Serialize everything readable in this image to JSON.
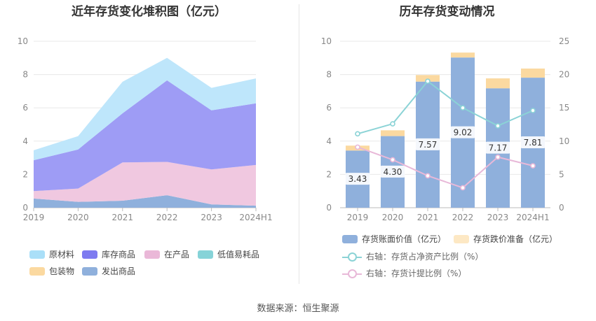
{
  "source": "数据来源：恒生聚源",
  "chart_data": [
    {
      "type": "area",
      "stacked": true,
      "title": "近年存货变化堆积图（亿元）",
      "categories": [
        "2019",
        "2020",
        "2021",
        "2022",
        "2023",
        "2024H1"
      ],
      "ylim": [
        0,
        10
      ],
      "yticks": [
        "0",
        "2",
        "4",
        "6",
        "8",
        "10"
      ],
      "grid": true,
      "legend_position": "bottom",
      "series": [
        {
          "name": "发出商品",
          "color": "#8fb0dc",
          "values": [
            0.55,
            0.35,
            0.42,
            0.75,
            0.2,
            0.12
          ]
        },
        {
          "name": "低值易耗品",
          "color": "#86d3d8",
          "values": [
            0.0,
            0.0,
            0.0,
            0.0,
            0.0,
            0.0
          ]
        },
        {
          "name": "在产品",
          "color": "#f0c8e0",
          "values": [
            0.45,
            0.8,
            2.3,
            2.0,
            2.1,
            2.45
          ]
        },
        {
          "name": "包装物",
          "color": "#fbd9a0",
          "values": [
            0.0,
            0.0,
            0.0,
            0.0,
            0.0,
            0.0
          ]
        },
        {
          "name": "库存商品",
          "color": "#9e9cf5",
          "values": [
            1.85,
            2.35,
            2.95,
            4.9,
            3.55,
            3.7
          ]
        },
        {
          "name": "原材料",
          "color": "#bee6fb",
          "values": [
            0.6,
            0.8,
            1.9,
            1.35,
            1.35,
            1.5
          ]
        }
      ],
      "legend": [
        {
          "name": "原材料",
          "color": "#aadff8"
        },
        {
          "name": "库存商品",
          "color": "#7e7bf0"
        },
        {
          "name": "在产品",
          "color": "#eab8d8"
        },
        {
          "name": "低值易耗品",
          "color": "#86d3d8"
        },
        {
          "name": "包装物",
          "color": "#fbd9a0"
        },
        {
          "name": "发出商品",
          "color": "#8fb0dc"
        }
      ]
    },
    {
      "type": "bar+line",
      "title": "历年存货变动情况",
      "categories": [
        "2019",
        "2020",
        "2021",
        "2022",
        "2023",
        "2024H1"
      ],
      "ylim": [
        0,
        10
      ],
      "yticks": [
        "0",
        "2",
        "4",
        "6",
        "8",
        "10"
      ],
      "y2lim": [
        0,
        25
      ],
      "y2ticks": [
        "0",
        "5",
        "10",
        "15",
        "20",
        "25"
      ],
      "grid": true,
      "legend_position": "bottom",
      "bars": [
        {
          "name": "存货账面价值（亿元）",
          "color": "#8fb0dc",
          "values": [
            3.43,
            4.3,
            7.57,
            9.02,
            7.17,
            7.81
          ],
          "labels": [
            "3.43",
            "4.30",
            "7.57",
            "9.02",
            "7.17",
            "7.81"
          ]
        },
        {
          "name": "存货跌价准备（亿元）",
          "color": "#fbd9a0",
          "values": [
            0.3,
            0.35,
            0.4,
            0.3,
            0.6,
            0.55
          ]
        }
      ],
      "lines": [
        {
          "name": "右轴：存货占净资产比例（%）",
          "color": "#8bd3d6",
          "values": [
            11.1,
            12.6,
            19.0,
            15.0,
            12.3,
            14.6
          ]
        },
        {
          "name": "右轴：存货计提比例（%）",
          "color": "#e8b8d8",
          "values": [
            9.1,
            7.2,
            4.8,
            3.0,
            7.6,
            6.3
          ]
        }
      ]
    }
  ]
}
